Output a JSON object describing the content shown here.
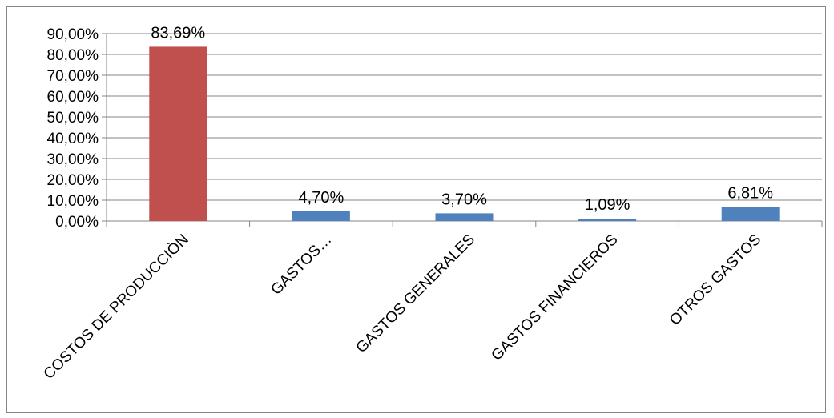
{
  "chart_data": {
    "type": "bar",
    "title": "",
    "xlabel": "",
    "ylabel": "",
    "categories": [
      "COSTOS DE PRODUCCIÒN",
      "GASTOS…",
      "GASTOS GENERALES",
      "GASTOS FINANCIEROS",
      "OTROS GASTOS"
    ],
    "values": [
      83.69,
      4.7,
      3.7,
      1.09,
      6.81
    ],
    "data_labels": [
      "83,69%",
      "4,70%",
      "3,70%",
      "1,09%",
      "6,81%"
    ],
    "bar_colors": [
      "#c0504d",
      "#4f81bd",
      "#4f81bd",
      "#4f81bd",
      "#4f81bd"
    ],
    "ylim": [
      0,
      90
    ],
    "y_ticks": [
      0,
      10,
      20,
      30,
      40,
      50,
      60,
      70,
      80,
      90
    ],
    "y_tick_labels": [
      "0,00%",
      "10,00%",
      "20,00%",
      "30,00%",
      "40,00%",
      "50,00%",
      "60,00%",
      "70,00%",
      "80,00%",
      "90,00%"
    ],
    "grid": true,
    "legend": "none",
    "colors": {
      "gridline": "#868686",
      "axis": "#868686",
      "border": "#868686"
    }
  }
}
